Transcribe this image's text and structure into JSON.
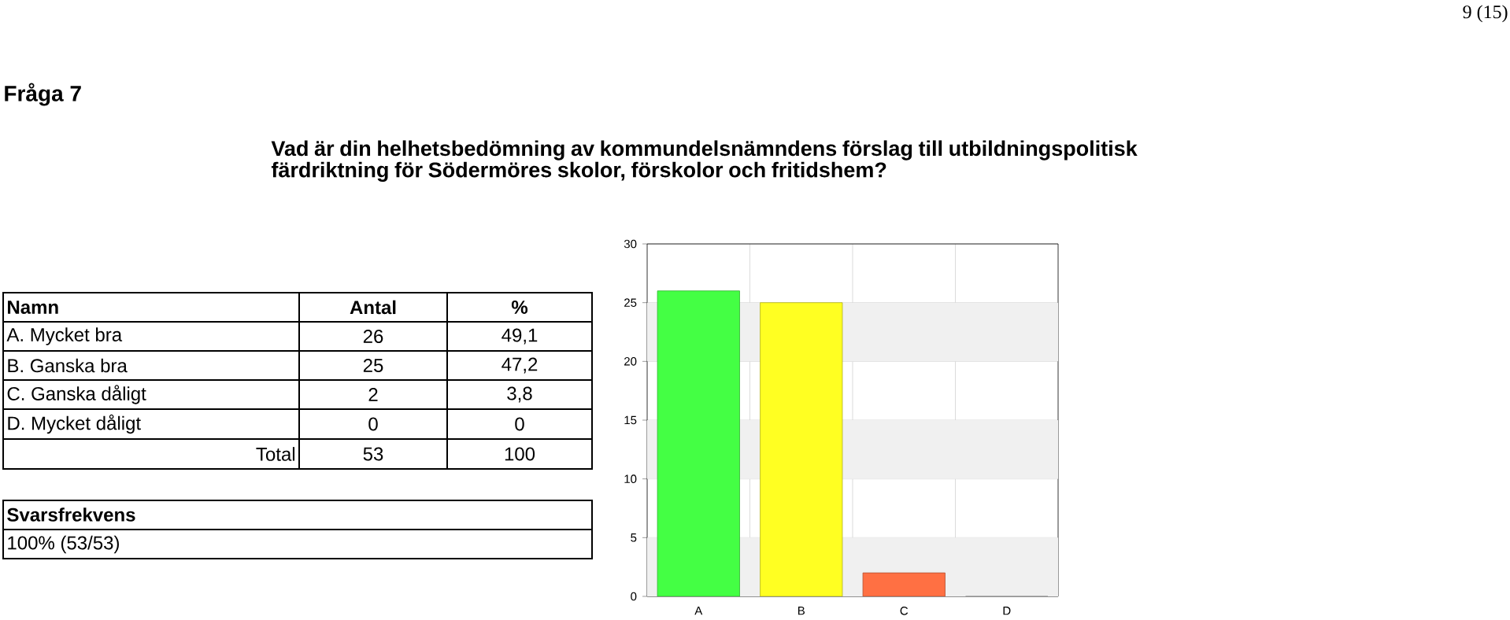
{
  "chart_data": {
    "type": "bar",
    "title": "Fråga 7",
    "subtitle": "Vad är din helhetsbedömning av kommundelsnämndens förslag till utbildningspolitisk färdriktning för Södermöres skolor, förskolor och fritidshem?",
    "categories": [
      "A",
      "B",
      "C",
      "D"
    ],
    "values": [
      26,
      25,
      2,
      0
    ],
    "colors": [
      "#44ff44",
      "#ffff22",
      "#ff7043",
      "#cccccc"
    ],
    "ylim": [
      0,
      30
    ],
    "yticks": [
      0,
      5,
      10,
      15,
      20,
      25,
      30
    ],
    "grid": true,
    "bands": [
      {
        "axis": "y",
        "from": 0,
        "to": 5,
        "color": "#f0f0f0"
      },
      {
        "axis": "y",
        "from": 10,
        "to": 15,
        "color": "#f0f0f0"
      },
      {
        "axis": "y",
        "from": 20,
        "to": 25,
        "color": "#f0f0f0"
      }
    ],
    "annotations": [
      "9 (15)",
      "Namn",
      "Antal",
      "%",
      "A. Mycket bra",
      "26",
      "49,1",
      "B. Ganska bra",
      "25",
      "47,2",
      "C. Ganska dåligt",
      "2",
      "3,8",
      "D. Mycket dåligt",
      "0",
      "0",
      "Total",
      "53",
      "100",
      "Svarsfrekvens",
      "100% (53/53)"
    ]
  }
}
